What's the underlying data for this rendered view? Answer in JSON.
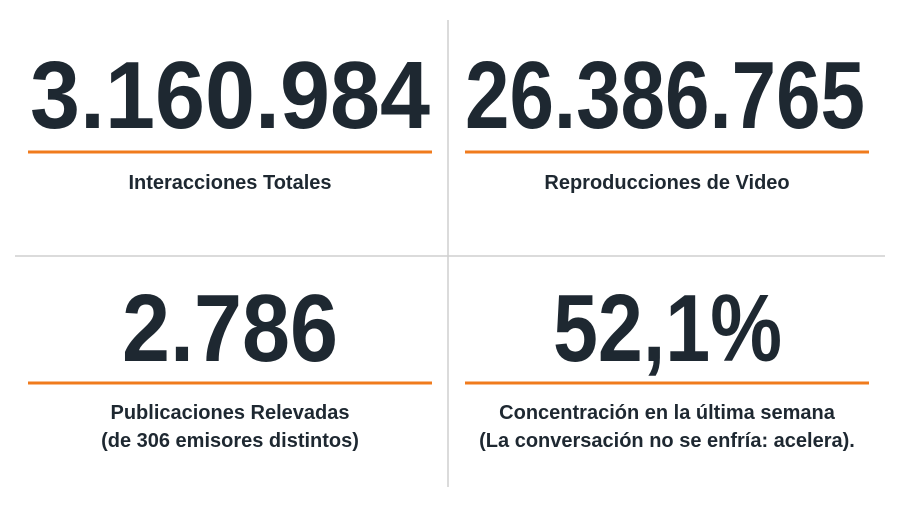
{
  "stats": [
    {
      "value": "3.160.984",
      "label": [
        "Interacciones Totales"
      ]
    },
    {
      "value": "26.386.765",
      "label": [
        "Reproducciones de Video"
      ]
    },
    {
      "value": "2.786",
      "label": [
        "Publicaciones Relevadas",
        "(de 306 emisores distintos)"
      ]
    },
    {
      "value": "52,1%",
      "label": [
        "Concentración en la última semana",
        "(La conversación no se enfría: acelera)."
      ]
    }
  ]
}
